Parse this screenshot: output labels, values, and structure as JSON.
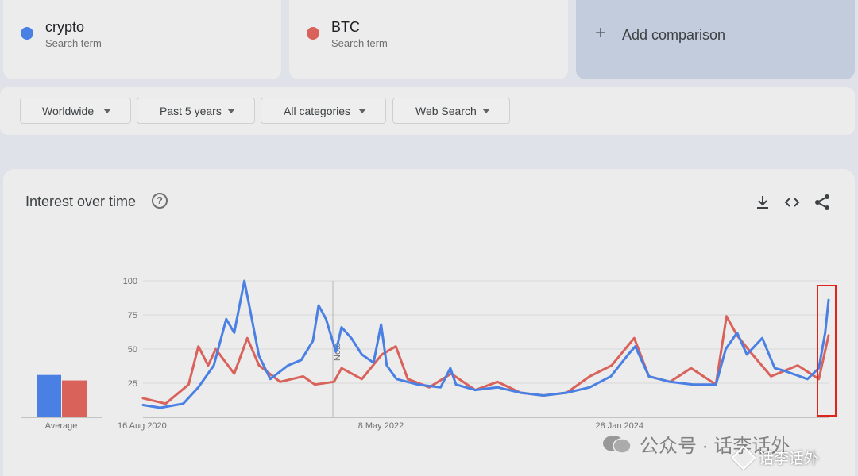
{
  "terms": [
    {
      "name": "crypto",
      "sub": "Search term",
      "color": "#4a80e4"
    },
    {
      "name": "BTC",
      "sub": "Search term",
      "color": "#d9625b"
    }
  ],
  "add_comparison": "Add comparison",
  "filters": [
    {
      "label": "Worldwide"
    },
    {
      "label": "Past 5 years"
    },
    {
      "label": "All categories"
    },
    {
      "label": "Web Search"
    }
  ],
  "panel": {
    "title": "Interest over time",
    "icons": [
      "help-icon",
      "download-icon",
      "embed-icon",
      "share-icon"
    ]
  },
  "chart_data": {
    "type": "line",
    "ylim": [
      0,
      100
    ],
    "yticks": [
      "100",
      "75",
      "50",
      "25"
    ],
    "xtick_labels": [
      {
        "label": "16 Aug 2020",
        "date": "2020-08-16"
      },
      {
        "label": "8 May 2022",
        "date": "2022-05-08"
      },
      {
        "label": "28 Jan 2024",
        "date": "2024-01-28"
      }
    ],
    "x_range": [
      "2020-08-16",
      "2025-08-10"
    ],
    "annotation": {
      "label": "Note",
      "date": "2022-01-02"
    },
    "average": {
      "label": "Average",
      "values": [
        31,
        27
      ]
    },
    "series": [
      {
        "name": "crypto",
        "color": "#4a80e4",
        "points": [
          [
            "2020-08-16",
            9
          ],
          [
            "2020-10-01",
            7
          ],
          [
            "2020-12-01",
            10
          ],
          [
            "2021-01-10",
            22
          ],
          [
            "2021-02-20",
            38
          ],
          [
            "2021-03-25",
            72
          ],
          [
            "2021-04-15",
            62
          ],
          [
            "2021-05-12",
            100
          ],
          [
            "2021-05-25",
            82
          ],
          [
            "2021-06-20",
            45
          ],
          [
            "2021-07-20",
            28
          ],
          [
            "2021-09-05",
            38
          ],
          [
            "2021-10-10",
            42
          ],
          [
            "2021-11-10",
            56
          ],
          [
            "2021-11-25",
            82
          ],
          [
            "2021-12-15",
            72
          ],
          [
            "2022-01-10",
            48
          ],
          [
            "2022-01-25",
            66
          ],
          [
            "2022-02-20",
            58
          ],
          [
            "2022-03-20",
            46
          ],
          [
            "2022-04-20",
            40
          ],
          [
            "2022-05-10",
            68
          ],
          [
            "2022-05-25",
            38
          ],
          [
            "2022-06-20",
            28
          ],
          [
            "2022-08-15",
            24
          ],
          [
            "2022-10-15",
            22
          ],
          [
            "2022-11-10",
            36
          ],
          [
            "2022-11-25",
            24
          ],
          [
            "2023-01-15",
            20
          ],
          [
            "2023-03-15",
            22
          ],
          [
            "2023-05-15",
            18
          ],
          [
            "2023-07-15",
            16
          ],
          [
            "2023-09-15",
            18
          ],
          [
            "2023-11-15",
            22
          ],
          [
            "2024-01-10",
            30
          ],
          [
            "2024-02-25",
            46
          ],
          [
            "2024-03-15",
            52
          ],
          [
            "2024-04-20",
            30
          ],
          [
            "2024-06-15",
            26
          ],
          [
            "2024-08-15",
            24
          ],
          [
            "2024-10-15",
            24
          ],
          [
            "2024-11-10",
            50
          ],
          [
            "2024-12-10",
            62
          ],
          [
            "2025-01-05",
            46
          ],
          [
            "2025-02-15",
            58
          ],
          [
            "2025-03-20",
            36
          ],
          [
            "2025-04-15",
            34
          ],
          [
            "2025-06-15",
            28
          ],
          [
            "2025-07-15",
            36
          ],
          [
            "2025-08-01",
            62
          ],
          [
            "2025-08-10",
            86
          ]
        ]
      },
      {
        "name": "BTC",
        "color": "#d9625b",
        "points": [
          [
            "2020-08-16",
            14
          ],
          [
            "2020-10-15",
            10
          ],
          [
            "2020-12-15",
            24
          ],
          [
            "2021-01-10",
            52
          ],
          [
            "2021-02-05",
            38
          ],
          [
            "2021-02-25",
            50
          ],
          [
            "2021-04-15",
            32
          ],
          [
            "2021-05-20",
            58
          ],
          [
            "2021-06-20",
            38
          ],
          [
            "2021-08-15",
            26
          ],
          [
            "2021-10-15",
            30
          ],
          [
            "2021-11-15",
            24
          ],
          [
            "2022-01-05",
            26
          ],
          [
            "2022-01-25",
            36
          ],
          [
            "2022-03-20",
            28
          ],
          [
            "2022-05-12",
            46
          ],
          [
            "2022-06-18",
            52
          ],
          [
            "2022-07-20",
            28
          ],
          [
            "2022-09-15",
            22
          ],
          [
            "2022-11-12",
            32
          ],
          [
            "2023-01-15",
            20
          ],
          [
            "2023-03-15",
            26
          ],
          [
            "2023-05-15",
            18
          ],
          [
            "2023-07-15",
            16
          ],
          [
            "2023-09-15",
            18
          ],
          [
            "2023-11-15",
            30
          ],
          [
            "2024-01-12",
            38
          ],
          [
            "2024-03-12",
            58
          ],
          [
            "2024-04-20",
            30
          ],
          [
            "2024-06-15",
            26
          ],
          [
            "2024-08-10",
            36
          ],
          [
            "2024-10-15",
            24
          ],
          [
            "2024-11-12",
            74
          ],
          [
            "2024-12-10",
            60
          ],
          [
            "2025-01-20",
            46
          ],
          [
            "2025-03-10",
            30
          ],
          [
            "2025-05-20",
            38
          ],
          [
            "2025-07-15",
            28
          ],
          [
            "2025-08-10",
            60
          ]
        ]
      }
    ]
  },
  "watermark": {
    "text": "公众号 · 话李话外",
    "text2": "话李话外"
  }
}
